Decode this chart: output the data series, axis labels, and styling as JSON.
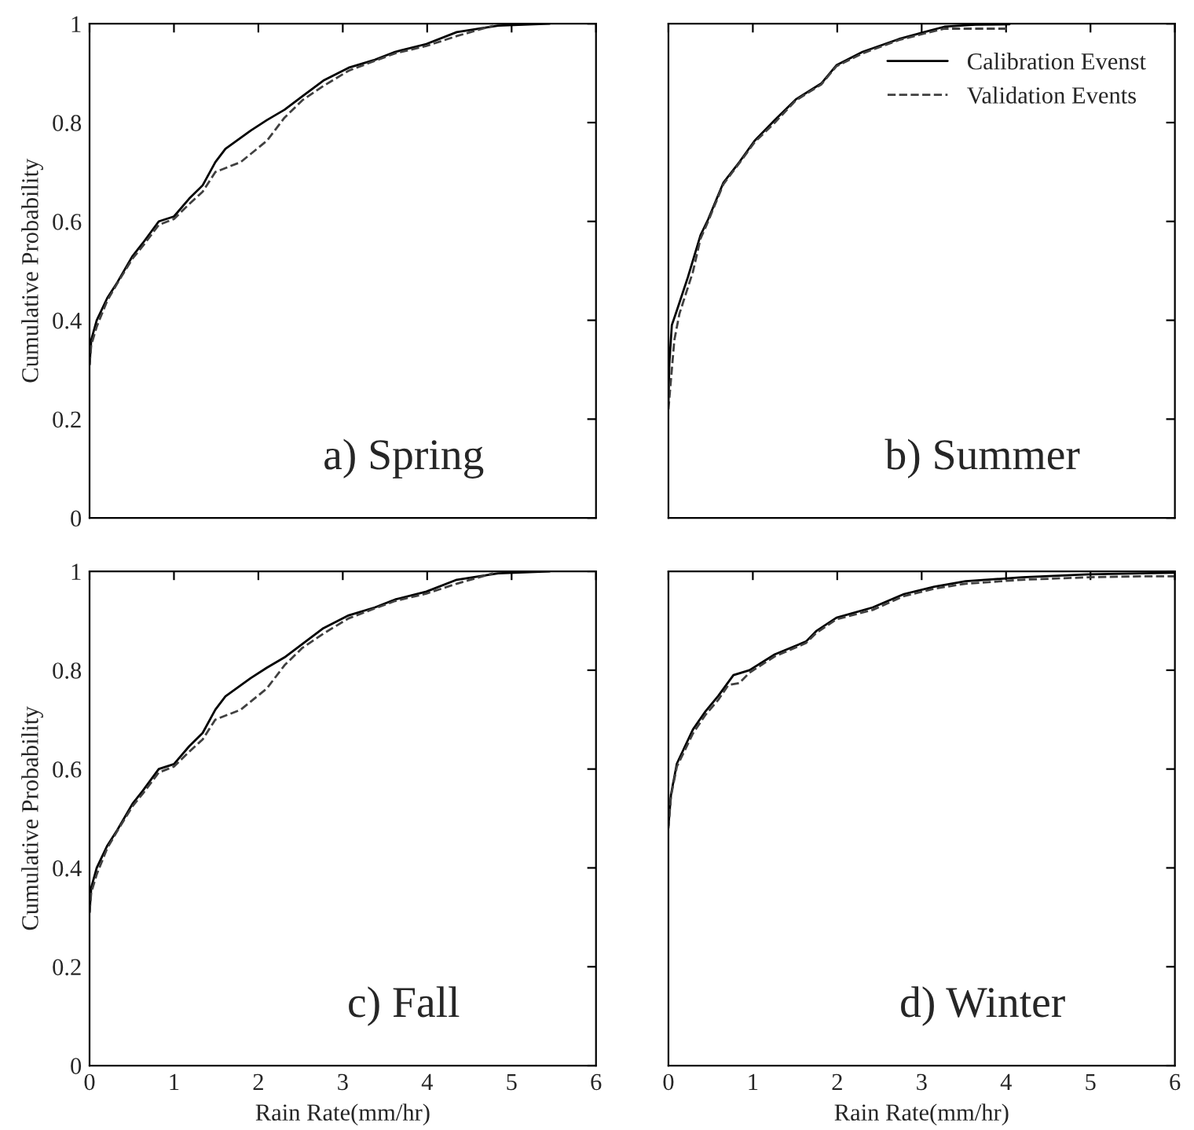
{
  "chart_data": [
    {
      "type": "line",
      "annotations": [
        "a) Spring"
      ],
      "ylabel": "Cumulative Probability",
      "xlim": [
        0,
        6
      ],
      "ylim": [
        0,
        1
      ],
      "xticks": [
        0,
        1,
        2,
        3,
        4,
        5,
        6
      ],
      "yticks": [
        0,
        0.2,
        0.4,
        0.6,
        0.8,
        1
      ],
      "tick_labels": "y",
      "grid": false,
      "series": [
        {
          "color": "#000000",
          "line_style": "solid",
          "x": [
            0,
            0.02,
            0.085,
            0.21,
            0.33,
            0.51,
            0.63,
            0.82,
            1.0,
            1.18,
            1.34,
            1.49,
            1.61,
            1.91,
            2.1,
            2.31,
            2.52,
            2.77,
            3.07,
            3.38,
            3.62,
            3.99,
            4.35,
            4.84,
            5.45
          ],
          "values": [
            0.31,
            0.36,
            0.4,
            0.445,
            0.477,
            0.53,
            0.556,
            0.6,
            0.61,
            0.646,
            0.673,
            0.72,
            0.747,
            0.784,
            0.805,
            0.826,
            0.853,
            0.885,
            0.911,
            0.927,
            0.943,
            0.959,
            0.983,
            0.996,
            1.0
          ]
        },
        {
          "color": "#404040",
          "line_style": "dashed",
          "x": [
            0,
            0.02,
            0.085,
            0.21,
            0.33,
            0.51,
            0.63,
            0.82,
            1.0,
            1.18,
            1.34,
            1.49,
            1.79,
            2.1,
            2.31,
            2.52,
            2.77,
            3.07,
            3.38,
            3.62,
            3.99,
            4.35,
            4.78
          ],
          "values": [
            0.31,
            0.35,
            0.387,
            0.44,
            0.475,
            0.525,
            0.55,
            0.593,
            0.605,
            0.635,
            0.66,
            0.7,
            0.72,
            0.763,
            0.81,
            0.845,
            0.874,
            0.905,
            0.925,
            0.94,
            0.955,
            0.975,
            0.996
          ]
        }
      ]
    },
    {
      "type": "line",
      "annotations": [
        "b) Summer"
      ],
      "xlim": [
        0,
        6
      ],
      "ylim": [
        0,
        1
      ],
      "xticks": [
        0,
        1,
        2,
        3,
        4,
        5,
        6
      ],
      "yticks": [
        0,
        0.2,
        0.4,
        0.6,
        0.8,
        1
      ],
      "tick_labels": false,
      "grid": false,
      "legend": "top right",
      "series": [
        {
          "name": "Calibration Evenst",
          "color": "#000000",
          "line_style": "solid",
          "x": [
            0,
            0.01,
            0.04,
            0.1,
            0.23,
            0.38,
            0.47,
            0.65,
            0.84,
            1.02,
            1.26,
            1.51,
            1.81,
            1.99,
            2.3,
            2.73,
            3.03,
            3.27,
            3.64,
            4.04
          ],
          "values": [
            0.233,
            0.31,
            0.39,
            0.42,
            0.487,
            0.572,
            0.604,
            0.678,
            0.72,
            0.763,
            0.805,
            0.847,
            0.879,
            0.916,
            0.943,
            0.969,
            0.983,
            0.994,
            0.998,
            0.999
          ]
        },
        {
          "name": "Validation Events",
          "color": "#404040",
          "line_style": "dashed",
          "x": [
            0,
            0.07,
            0.13,
            0.29,
            0.38,
            0.47,
            0.65,
            0.84,
            1.02,
            1.26,
            1.51,
            1.81,
            1.99,
            2.3,
            2.73,
            3.03,
            3.27,
            3.64,
            4.04
          ],
          "values": [
            0.22,
            0.36,
            0.413,
            0.498,
            0.565,
            0.6,
            0.675,
            0.718,
            0.76,
            0.8,
            0.845,
            0.877,
            0.914,
            0.94,
            0.967,
            0.98,
            0.99,
            0.99,
            0.99
          ]
        }
      ]
    },
    {
      "type": "line",
      "annotations": [
        "c) Fall"
      ],
      "xlabel": "Rain Rate(mm/hr)",
      "ylabel": "Cumulative Probability",
      "xlim": [
        0,
        6
      ],
      "ylim": [
        0,
        1
      ],
      "xticks": [
        0,
        1,
        2,
        3,
        4,
        5,
        6
      ],
      "yticks": [
        0,
        0.2,
        0.4,
        0.6,
        0.8,
        1
      ],
      "grid": false,
      "series": [
        {
          "color": "#000000",
          "line_style": "solid",
          "x": [
            0,
            0.02,
            0.085,
            0.21,
            0.33,
            0.51,
            0.63,
            0.82,
            1.0,
            1.18,
            1.34,
            1.49,
            1.61,
            1.91,
            2.1,
            2.31,
            2.52,
            2.77,
            3.07,
            3.38,
            3.62,
            3.99,
            4.35,
            4.84,
            5.45
          ],
          "values": [
            0.31,
            0.36,
            0.4,
            0.445,
            0.477,
            0.53,
            0.556,
            0.6,
            0.61,
            0.646,
            0.673,
            0.72,
            0.747,
            0.784,
            0.805,
            0.826,
            0.853,
            0.885,
            0.911,
            0.927,
            0.943,
            0.959,
            0.983,
            0.996,
            1.0
          ]
        },
        {
          "color": "#404040",
          "line_style": "dashed",
          "x": [
            0,
            0.02,
            0.085,
            0.21,
            0.33,
            0.51,
            0.63,
            0.82,
            1.0,
            1.18,
            1.34,
            1.49,
            1.79,
            2.1,
            2.31,
            2.52,
            2.77,
            3.07,
            3.38,
            3.62,
            3.99,
            4.35,
            4.78
          ],
          "values": [
            0.31,
            0.35,
            0.387,
            0.44,
            0.475,
            0.525,
            0.55,
            0.593,
            0.605,
            0.635,
            0.66,
            0.7,
            0.72,
            0.763,
            0.81,
            0.845,
            0.874,
            0.905,
            0.925,
            0.94,
            0.955,
            0.975,
            0.996
          ]
        }
      ]
    },
    {
      "type": "line",
      "annotations": [
        "d) Winter"
      ],
      "xlabel": "Rain Rate(mm/hr)",
      "xlim": [
        0,
        6
      ],
      "ylim": [
        0,
        1
      ],
      "xticks": [
        0,
        1,
        2,
        3,
        4,
        5,
        6
      ],
      "yticks": [
        0,
        0.2,
        0.4,
        0.6,
        0.8,
        1
      ],
      "tick_labels": "x",
      "grid": false,
      "series": [
        {
          "color": "#000000",
          "line_style": "solid",
          "x": [
            0,
            0.03,
            0.1,
            0.29,
            0.44,
            0.59,
            0.77,
            0.96,
            1.26,
            1.63,
            1.75,
            1.99,
            2.42,
            2.79,
            3.15,
            3.52,
            4.19,
            4.98,
            5.59,
            6
          ],
          "values": [
            0.485,
            0.548,
            0.611,
            0.68,
            0.717,
            0.748,
            0.79,
            0.8,
            0.832,
            0.858,
            0.879,
            0.906,
            0.927,
            0.954,
            0.969,
            0.98,
            0.988,
            0.994,
            0.996,
            0.997
          ]
        },
        {
          "color": "#404040",
          "line_style": "dashed",
          "x": [
            0,
            0.03,
            0.1,
            0.29,
            0.44,
            0.59,
            0.71,
            0.84,
            0.96,
            1.26,
            1.63,
            1.75,
            1.99,
            2.42,
            2.79,
            3.15,
            3.52,
            4.19,
            4.98,
            5.59,
            6
          ],
          "values": [
            0.48,
            0.545,
            0.605,
            0.672,
            0.71,
            0.74,
            0.77,
            0.774,
            0.795,
            0.828,
            0.855,
            0.875,
            0.903,
            0.922,
            0.95,
            0.965,
            0.975,
            0.983,
            0.988,
            0.99,
            0.99
          ]
        }
      ]
    }
  ]
}
